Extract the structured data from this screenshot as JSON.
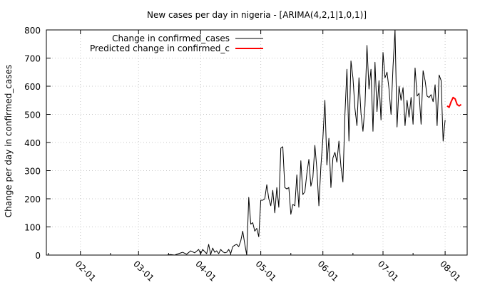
{
  "chart_data": {
    "type": "line",
    "title": "New cases per day in nigeria -  [ARIMA(4,2,1|1,0,1)]",
    "xlabel": "",
    "ylabel": "Change per day in confirmed_cases",
    "x_axis": {
      "type": "date",
      "range": [
        "2020-01-15",
        "2020-08-12"
      ],
      "tick_dates": [
        "2020-02-01",
        "2020-03-01",
        "2020-04-01",
        "2020-05-01",
        "2020-06-01",
        "2020-07-01",
        "2020-08-01"
      ],
      "tick_labels": [
        "02-01",
        "03-01",
        "04-01",
        "05-01",
        "06-01",
        "07-01",
        "08-01"
      ]
    },
    "y_axis": {
      "range": [
        0,
        800
      ],
      "ticks": [
        0,
        100,
        200,
        300,
        400,
        500,
        600,
        700,
        800
      ]
    },
    "grid": true,
    "legend_position": "top-left",
    "series": [
      {
        "name": "Change in confirmed_cases",
        "color": "#000000",
        "points": [
          [
            "2020-01-15",
            0
          ],
          [
            "2020-03-15",
            0
          ],
          [
            "2020-03-17",
            2
          ],
          [
            "2020-03-19",
            0
          ],
          [
            "2020-03-21",
            5
          ],
          [
            "2020-03-23",
            10
          ],
          [
            "2020-03-25",
            3
          ],
          [
            "2020-03-27",
            15
          ],
          [
            "2020-03-29",
            8
          ],
          [
            "2020-03-31",
            20
          ],
          [
            "2020-04-01",
            4
          ],
          [
            "2020-04-02",
            20
          ],
          [
            "2020-04-04",
            5
          ],
          [
            "2020-04-05",
            38
          ],
          [
            "2020-04-06",
            2
          ],
          [
            "2020-04-07",
            25
          ],
          [
            "2020-04-08",
            10
          ],
          [
            "2020-04-09",
            15
          ],
          [
            "2020-04-10",
            5
          ],
          [
            "2020-04-11",
            20
          ],
          [
            "2020-04-12",
            12
          ],
          [
            "2020-04-13",
            8
          ],
          [
            "2020-04-14",
            10
          ],
          [
            "2020-04-15",
            20
          ],
          [
            "2020-04-16",
            5
          ],
          [
            "2020-04-17",
            30
          ],
          [
            "2020-04-18",
            35
          ],
          [
            "2020-04-19",
            38
          ],
          [
            "2020-04-20",
            30
          ],
          [
            "2020-04-21",
            50
          ],
          [
            "2020-04-22",
            85
          ],
          [
            "2020-04-23",
            40
          ],
          [
            "2020-04-24",
            0
          ],
          [
            "2020-04-25",
            205
          ],
          [
            "2020-04-26",
            110
          ],
          [
            "2020-04-27",
            115
          ],
          [
            "2020-04-28",
            85
          ],
          [
            "2020-04-29",
            95
          ],
          [
            "2020-04-30",
            65
          ],
          [
            "2020-05-01",
            195
          ],
          [
            "2020-05-02",
            195
          ],
          [
            "2020-05-03",
            200
          ],
          [
            "2020-05-04",
            250
          ],
          [
            "2020-05-05",
            200
          ],
          [
            "2020-05-06",
            175
          ],
          [
            "2020-05-07",
            230
          ],
          [
            "2020-05-08",
            150
          ],
          [
            "2020-05-09",
            240
          ],
          [
            "2020-05-10",
            170
          ],
          [
            "2020-05-11",
            380
          ],
          [
            "2020-05-12",
            385
          ],
          [
            "2020-05-13",
            240
          ],
          [
            "2020-05-14",
            235
          ],
          [
            "2020-05-15",
            240
          ],
          [
            "2020-05-16",
            145
          ],
          [
            "2020-05-17",
            180
          ],
          [
            "2020-05-18",
            175
          ],
          [
            "2020-05-19",
            285
          ],
          [
            "2020-05-20",
            170
          ],
          [
            "2020-05-21",
            335
          ],
          [
            "2020-05-22",
            215
          ],
          [
            "2020-05-23",
            225
          ],
          [
            "2020-05-24",
            290
          ],
          [
            "2020-05-25",
            340
          ],
          [
            "2020-05-26",
            245
          ],
          [
            "2020-05-27",
            275
          ],
          [
            "2020-05-28",
            390
          ],
          [
            "2020-05-29",
            305
          ],
          [
            "2020-05-30",
            175
          ],
          [
            "2020-05-31",
            315
          ],
          [
            "2020-06-01",
            415
          ],
          [
            "2020-06-02",
            550
          ],
          [
            "2020-06-03",
            320
          ],
          [
            "2020-06-04",
            415
          ],
          [
            "2020-06-05",
            240
          ],
          [
            "2020-06-06",
            345
          ],
          [
            "2020-06-07",
            365
          ],
          [
            "2020-06-08",
            330
          ],
          [
            "2020-06-09",
            405
          ],
          [
            "2020-06-10",
            315
          ],
          [
            "2020-06-11",
            260
          ],
          [
            "2020-06-12",
            500
          ],
          [
            "2020-06-13",
            660
          ],
          [
            "2020-06-14",
            405
          ],
          [
            "2020-06-15",
            690
          ],
          [
            "2020-06-16",
            630
          ],
          [
            "2020-06-17",
            520
          ],
          [
            "2020-06-18",
            460
          ],
          [
            "2020-06-19",
            630
          ],
          [
            "2020-06-20",
            505
          ],
          [
            "2020-06-21",
            440
          ],
          [
            "2020-06-22",
            530
          ],
          [
            "2020-06-23",
            745
          ],
          [
            "2020-06-24",
            590
          ],
          [
            "2020-06-25",
            660
          ],
          [
            "2020-06-26",
            440
          ],
          [
            "2020-06-27",
            685
          ],
          [
            "2020-06-28",
            510
          ],
          [
            "2020-06-29",
            620
          ],
          [
            "2020-06-30",
            480
          ],
          [
            "2020-07-01",
            720
          ],
          [
            "2020-07-02",
            630
          ],
          [
            "2020-07-03",
            650
          ],
          [
            "2020-07-04",
            590
          ],
          [
            "2020-07-05",
            500
          ],
          [
            "2020-07-06",
            670
          ],
          [
            "2020-07-07",
            800
          ],
          [
            "2020-07-08",
            455
          ],
          [
            "2020-07-09",
            600
          ],
          [
            "2020-07-10",
            550
          ],
          [
            "2020-07-11",
            595
          ],
          [
            "2020-07-12",
            460
          ],
          [
            "2020-07-13",
            550
          ],
          [
            "2020-07-14",
            490
          ],
          [
            "2020-07-15",
            560
          ],
          [
            "2020-07-16",
            465
          ],
          [
            "2020-07-17",
            665
          ],
          [
            "2020-07-18",
            565
          ],
          [
            "2020-07-19",
            575
          ],
          [
            "2020-07-20",
            465
          ],
          [
            "2020-07-21",
            655
          ],
          [
            "2020-07-22",
            620
          ],
          [
            "2020-07-23",
            565
          ],
          [
            "2020-07-24",
            560
          ],
          [
            "2020-07-25",
            570
          ],
          [
            "2020-07-26",
            545
          ],
          [
            "2020-07-27",
            605
          ],
          [
            "2020-07-28",
            460
          ],
          [
            "2020-07-29",
            640
          ],
          [
            "2020-07-30",
            620
          ],
          [
            "2020-07-31",
            405
          ],
          [
            "2020-08-01",
            480
          ]
        ]
      },
      {
        "name": "Predicted change in confirmed_c",
        "color": "#ff0000",
        "points": [
          [
            "2020-08-02",
            530
          ],
          [
            "2020-08-03",
            525
          ],
          [
            "2020-08-04",
            545
          ],
          [
            "2020-08-05",
            560
          ],
          [
            "2020-08-06",
            555
          ],
          [
            "2020-08-07",
            535
          ],
          [
            "2020-08-08",
            530
          ],
          [
            "2020-08-09",
            535
          ]
        ]
      }
    ]
  }
}
